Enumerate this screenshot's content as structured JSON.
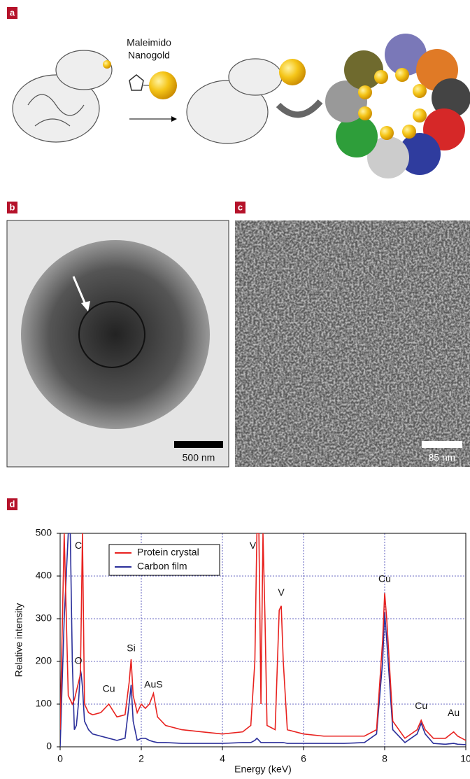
{
  "panels": {
    "a": {
      "label": "a",
      "reagent": [
        "Maleimido",
        "Nanogold"
      ]
    },
    "b": {
      "label": "b",
      "scale_bar": "500 nm"
    },
    "c": {
      "label": "c",
      "scale_bar": "85 nm"
    },
    "d": {
      "label": "d"
    }
  },
  "chart_data": {
    "type": "line",
    "x_label": "Energy (keV)",
    "y_label": "Relative intensity",
    "x": [
      0,
      0.1,
      0.2,
      0.25,
      0.3,
      0.35,
      0.4,
      0.45,
      0.5,
      0.52,
      0.55,
      0.6,
      0.7,
      0.8,
      1.0,
      1.2,
      1.4,
      1.6,
      1.7,
      1.75,
      1.8,
      1.9,
      2.0,
      2.1,
      2.2,
      2.3,
      2.4,
      2.6,
      3.0,
      3.5,
      4.0,
      4.5,
      4.7,
      4.8,
      4.85,
      4.9,
      4.95,
      5.0,
      5.05,
      5.1,
      5.3,
      5.4,
      5.45,
      5.5,
      5.6,
      6.0,
      6.5,
      7.0,
      7.5,
      7.8,
      7.95,
      8.0,
      8.05,
      8.2,
      8.5,
      8.8,
      8.9,
      9.0,
      9.2,
      9.5,
      9.7,
      9.8,
      10.0
    ],
    "series": [
      {
        "name": "Protein crystal",
        "color": "#e8221f",
        "values": [
          40,
          500,
          120,
          110,
          100,
          110,
          130,
          150,
          170,
          300,
          500,
          100,
          80,
          75,
          80,
          100,
          70,
          75,
          150,
          205,
          120,
          80,
          100,
          90,
          100,
          125,
          70,
          50,
          40,
          35,
          30,
          35,
          50,
          200,
          500,
          500,
          100,
          500,
          300,
          50,
          40,
          320,
          330,
          200,
          40,
          30,
          25,
          25,
          25,
          40,
          250,
          360,
          300,
          60,
          20,
          40,
          62,
          40,
          20,
          20,
          35,
          25,
          15
        ]
      },
      {
        "name": "Carbon film",
        "color": "#2b2f9a",
        "values": [
          0,
          300,
          500,
          500,
          200,
          40,
          50,
          100,
          180,
          170,
          140,
          60,
          40,
          30,
          25,
          20,
          15,
          20,
          100,
          145,
          60,
          15,
          20,
          20,
          15,
          12,
          10,
          10,
          8,
          8,
          8,
          10,
          10,
          15,
          20,
          15,
          10,
          10,
          10,
          10,
          10,
          10,
          10,
          10,
          8,
          8,
          8,
          8,
          10,
          30,
          200,
          315,
          250,
          40,
          10,
          30,
          55,
          30,
          8,
          6,
          8,
          6,
          5
        ]
      }
    ],
    "xlim": [
      0,
      10
    ],
    "ylim": [
      0,
      500
    ],
    "xticks": [
      0,
      2,
      4,
      6,
      8,
      10
    ],
    "yticks": [
      0,
      100,
      200,
      300,
      400,
      500
    ],
    "grid": true,
    "legend": "upper left",
    "annotations": [
      "C",
      "O",
      "Cu",
      "Si",
      "AuS",
      "V",
      "V",
      "Cu",
      "Cu",
      "Au"
    ]
  }
}
